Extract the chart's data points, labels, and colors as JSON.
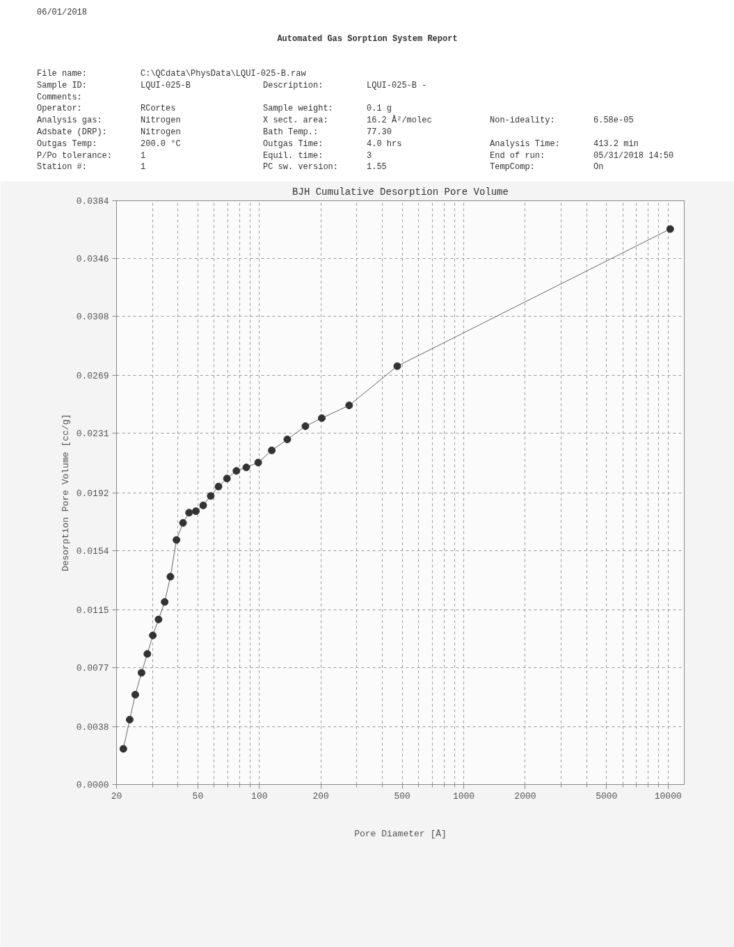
{
  "chart_data": {
    "type": "line",
    "title": "BJH Cumulative Desorption Pore Volume",
    "xlabel": "Pore Diameter [Å]",
    "ylabel": "Desorption Pore Volume [cc/g]",
    "annotations": [
      "06/01/2018",
      "Automated Gas Sorption System Report",
      "File name:",
      "C:\\QCdata\\PhysData\\LQUI-025-B.raw",
      "Sample ID:",
      "LQUI-025-B",
      "Description:",
      "LQUI-025-B -",
      "Comments:",
      "Operator:",
      "RCortes",
      "Sample weight:",
      "0.1 g",
      "Analysis gas:",
      "Nitrogen",
      "X sect. area:",
      "16.2 Å²/molec",
      "Non-ideality:",
      "6.58e-05",
      "Adsbate (DRP):",
      "Nitrogen",
      "Bath Temp.:",
      "77.30",
      "Outgas Temp:",
      "200.0 °C",
      "Outgas Time:",
      "4.0 hrs",
      "Analysis Time:",
      "413.2 min",
      "P/Po tolerance:",
      "1",
      "Equil. time:",
      "3",
      "End of run:",
      "05/31/2018 14:50",
      "Station #:",
      "1",
      "PC sw. version:",
      "1.55",
      "TempComp:",
      "On"
    ],
    "x": [
      21.6,
      23.2,
      24.7,
      26.5,
      28.3,
      30.1,
      32.1,
      34.4,
      36.7,
      39.3,
      42.3,
      45.3,
      48.9,
      53.1,
      57.8,
      63.1,
      69.4,
      77.2,
      86.3,
      98.7,
      115,
      137,
      168,
      202,
      275,
      473,
      10240
    ],
    "series": [
      {
        "color": "#333333",
        "values": [
          0.00235,
          0.00427,
          0.00591,
          0.00735,
          0.00859,
          0.00981,
          0.01086,
          0.01201,
          0.01367,
          0.01609,
          0.01721,
          0.01788,
          0.01798,
          0.01836,
          0.01898,
          0.0196,
          0.02013,
          0.02063,
          0.02086,
          0.02118,
          0.02198,
          0.0227,
          0.02357,
          0.0241,
          0.02494,
          0.02752,
          0.03654
        ]
      }
    ],
    "log": "x",
    "xlim": [
      20,
      12000
    ],
    "xticks": [
      20,
      50,
      100,
      200,
      500,
      1000,
      2000,
      5000,
      10000
    ],
    "ylim": [
      0,
      0.0384
    ],
    "yticks": [
      {
        "value": 0,
        "label": "0.0000"
      },
      {
        "value": 0.0038,
        "label": "0.0038"
      },
      {
        "value": 0.0077,
        "label": "0.0077"
      },
      {
        "value": 0.0115,
        "label": "0.0115"
      },
      {
        "value": 0.0154,
        "label": "0.0154"
      },
      {
        "value": 0.0192,
        "label": "0.0192"
      },
      {
        "value": 0.0231,
        "label": "0.0231"
      },
      {
        "value": 0.0269,
        "label": "0.0269"
      },
      {
        "value": 0.0308,
        "label": "0.0308"
      },
      {
        "value": 0.0346,
        "label": "0.0346"
      },
      {
        "value": 0.0384,
        "label": "0.0384"
      }
    ],
    "grid": true,
    "marker": "circle",
    "line_style": "solid"
  }
}
